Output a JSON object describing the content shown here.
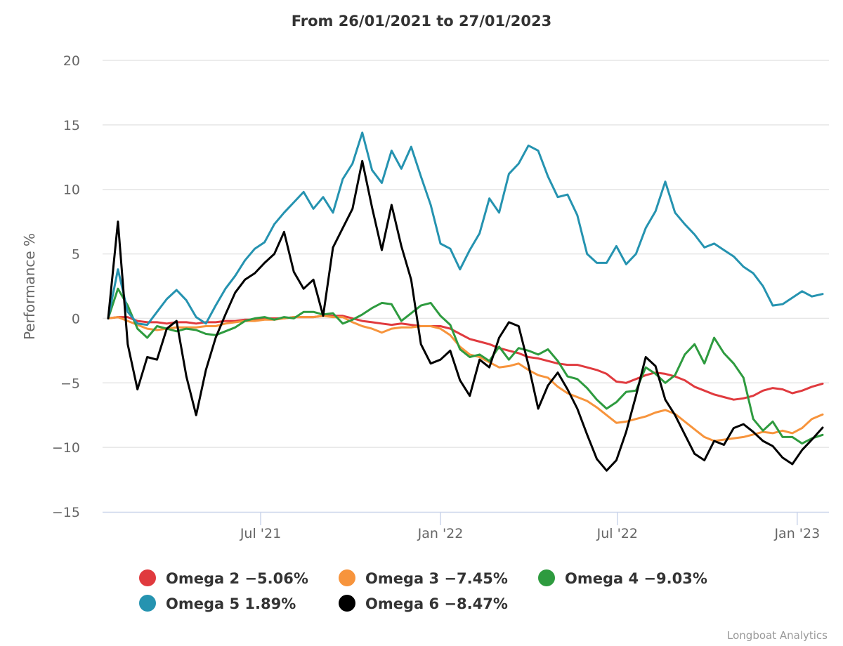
{
  "chart_data": {
    "type": "line",
    "title": "From 26/01/2021 to 27/01/2023",
    "xlabel": "",
    "ylabel": "Performance %",
    "ylim": [
      -15,
      20
    ],
    "yticks": [
      "20",
      "15",
      "10",
      "5",
      "0",
      "−5",
      "−10",
      "−15"
    ],
    "ytick_values": [
      20,
      15,
      10,
      5,
      0,
      -5,
      -10,
      -15
    ],
    "xrange": [
      "2021-01-26",
      "2023-01-27"
    ],
    "xticks": [
      {
        "label": "Jul '21",
        "date": "2021-07-01"
      },
      {
        "label": "Jan '22",
        "date": "2022-01-01"
      },
      {
        "label": "Jul '22",
        "date": "2022-07-01"
      },
      {
        "label": "Jan '23",
        "date": "2023-01-01"
      }
    ],
    "grid": true,
    "legend_position": "bottom",
    "credit": "Longboat Analytics",
    "x": [
      "2021-01-26",
      "2021-02-05",
      "2021-02-15",
      "2021-02-25",
      "2021-03-07",
      "2021-03-17",
      "2021-03-27",
      "2021-04-06",
      "2021-04-16",
      "2021-04-26",
      "2021-05-06",
      "2021-05-16",
      "2021-05-26",
      "2021-06-05",
      "2021-06-15",
      "2021-06-25",
      "2021-07-05",
      "2021-07-15",
      "2021-07-25",
      "2021-08-04",
      "2021-08-14",
      "2021-08-24",
      "2021-09-03",
      "2021-09-13",
      "2021-09-23",
      "2021-10-03",
      "2021-10-13",
      "2021-10-23",
      "2021-11-02",
      "2021-11-12",
      "2021-11-22",
      "2021-12-02",
      "2021-12-12",
      "2021-12-22",
      "2022-01-01",
      "2022-01-11",
      "2022-01-21",
      "2022-01-31",
      "2022-02-10",
      "2022-02-20",
      "2022-03-02",
      "2022-03-12",
      "2022-03-22",
      "2022-04-01",
      "2022-04-11",
      "2022-04-21",
      "2022-05-01",
      "2022-05-11",
      "2022-05-21",
      "2022-05-31",
      "2022-06-10",
      "2022-06-20",
      "2022-06-30",
      "2022-07-10",
      "2022-07-20",
      "2022-07-30",
      "2022-08-09",
      "2022-08-19",
      "2022-08-29",
      "2022-09-08",
      "2022-09-18",
      "2022-09-28",
      "2022-10-08",
      "2022-10-18",
      "2022-10-28",
      "2022-11-07",
      "2022-11-17",
      "2022-11-27",
      "2022-12-07",
      "2022-12-17",
      "2022-12-27",
      "2023-01-06",
      "2023-01-16",
      "2023-01-27"
    ],
    "series": [
      {
        "name": "Omega 2",
        "legend_label": "Omega 2 −5.06%",
        "color": "#e03a3e",
        "values": [
          0,
          0.1,
          0.1,
          -0.2,
          -0.3,
          -0.3,
          -0.4,
          -0.3,
          -0.3,
          -0.4,
          -0.3,
          -0.3,
          -0.2,
          -0.2,
          -0.1,
          -0.1,
          0,
          0,
          0,
          0.1,
          0.1,
          0.1,
          0.2,
          0.2,
          0.2,
          0,
          -0.2,
          -0.3,
          -0.4,
          -0.5,
          -0.4,
          -0.5,
          -0.6,
          -0.6,
          -0.6,
          -0.8,
          -1.2,
          -1.6,
          -1.8,
          -2,
          -2.3,
          -2.5,
          -2.7,
          -3,
          -3.1,
          -3.3,
          -3.5,
          -3.6,
          -3.6,
          -3.8,
          -4,
          -4.3,
          -4.9,
          -5,
          -4.7,
          -4.4,
          -4.2,
          -4.3,
          -4.5,
          -4.8,
          -5.3,
          -5.6,
          -5.9,
          -6.1,
          -6.3,
          -6.2,
          -6.0,
          -5.6,
          -5.4,
          -5.5,
          -5.8,
          -5.6,
          -5.3,
          -5.06
        ]
      },
      {
        "name": "Omega 3",
        "legend_label": "Omega 3 −7.45%",
        "color": "#f7943c",
        "values": [
          0,
          0.1,
          -0.2,
          -0.5,
          -0.8,
          -0.9,
          -0.8,
          -0.7,
          -0.7,
          -0.7,
          -0.6,
          -0.6,
          -0.4,
          -0.3,
          -0.2,
          -0.2,
          -0.1,
          -0.1,
          0,
          0.1,
          0.1,
          0.1,
          0.2,
          0.1,
          0.1,
          -0.3,
          -0.6,
          -0.8,
          -1.1,
          -0.8,
          -0.7,
          -0.7,
          -0.6,
          -0.6,
          -0.8,
          -1.3,
          -2.2,
          -2.8,
          -3.0,
          -3.4,
          -3.8,
          -3.7,
          -3.5,
          -4,
          -4.4,
          -4.6,
          -5.3,
          -5.8,
          -6.1,
          -6.4,
          -6.9,
          -7.5,
          -8.1,
          -8.0,
          -7.8,
          -7.6,
          -7.3,
          -7.1,
          -7.4,
          -8.0,
          -8.6,
          -9.2,
          -9.5,
          -9.4,
          -9.3,
          -9.2,
          -9.0,
          -8.8,
          -8.9,
          -8.7,
          -8.9,
          -8.5,
          -7.8,
          -7.45
        ]
      },
      {
        "name": "Omega 4",
        "legend_label": "Omega 4 −9.03%",
        "color": "#2e9b3f",
        "values": [
          0,
          2.3,
          1.0,
          -0.8,
          -1.5,
          -0.6,
          -0.8,
          -1.0,
          -0.8,
          -0.9,
          -1.2,
          -1.3,
          -1.0,
          -0.7,
          -0.2,
          0,
          0.1,
          -0.1,
          0.1,
          0,
          0.5,
          0.5,
          0.3,
          0.4,
          -0.4,
          -0.1,
          0.3,
          0.8,
          1.2,
          1.1,
          -0.2,
          0.4,
          1.0,
          1.2,
          0.2,
          -0.5,
          -2.4,
          -3.0,
          -2.8,
          -3.3,
          -2.2,
          -3.2,
          -2.3,
          -2.5,
          -2.8,
          -2.4,
          -3.3,
          -4.5,
          -4.7,
          -5.4,
          -6.3,
          -7.0,
          -6.5,
          -5.7,
          -5.6,
          -3.8,
          -4.3,
          -5.0,
          -4.4,
          -2.8,
          -2.0,
          -3.5,
          -1.5,
          -2.7,
          -3.5,
          -4.6,
          -7.8,
          -8.7,
          -8.0,
          -9.2,
          -9.2,
          -9.7,
          -9.3,
          -9.03
        ]
      },
      {
        "name": "Omega 5",
        "legend_label": "Omega 5 1.89%",
        "color": "#2593b0",
        "values": [
          0,
          3.8,
          0.5,
          -0.4,
          -0.5,
          0.5,
          1.5,
          2.2,
          1.4,
          0.1,
          -0.4,
          1.0,
          2.3,
          3.3,
          4.5,
          5.4,
          5.9,
          7.3,
          8.2,
          9.0,
          9.8,
          8.5,
          9.4,
          8.2,
          10.8,
          12.0,
          14.4,
          11.5,
          10.5,
          13.0,
          11.6,
          13.3,
          11.0,
          8.8,
          5.8,
          5.4,
          3.8,
          5.3,
          6.6,
          9.3,
          8.2,
          11.2,
          12.0,
          13.4,
          13.0,
          11.0,
          9.4,
          9.6,
          8.0,
          5.0,
          4.3,
          4.3,
          5.6,
          4.2,
          5.0,
          7.0,
          8.3,
          10.6,
          8.2,
          7.3,
          6.5,
          5.5,
          5.8,
          5.3,
          4.8,
          4.0,
          3.5,
          2.5,
          1.0,
          1.1,
          1.6,
          2.1,
          1.7,
          1.89
        ]
      },
      {
        "name": "Omega 6",
        "legend_label": "Omega 6 −8.47%",
        "color": "#000000",
        "values": [
          0,
          7.5,
          -2.0,
          -5.5,
          -3.0,
          -3.2,
          -0.8,
          -0.2,
          -4.5,
          -7.5,
          -4.0,
          -1.5,
          0.3,
          2.0,
          3.0,
          3.5,
          4.3,
          5.0,
          6.7,
          3.6,
          2.3,
          3.0,
          0.2,
          5.5,
          7.0,
          8.5,
          12.2,
          8.6,
          5.3,
          8.8,
          5.6,
          3.0,
          -2.0,
          -3.5,
          -3.2,
          -2.5,
          -4.8,
          -6.0,
          -3.2,
          -3.8,
          -1.5,
          -0.3,
          -0.6,
          -3.6,
          -7.0,
          -5.2,
          -4.2,
          -5.5,
          -7.0,
          -9.0,
          -10.9,
          -11.8,
          -11.0,
          -8.8,
          -6.0,
          -3.0,
          -3.7,
          -6.3,
          -7.5,
          -9.0,
          -10.5,
          -11.0,
          -9.5,
          -9.8,
          -8.5,
          -8.2,
          -8.8,
          -9.5,
          -9.9,
          -10.8,
          -11.3,
          -10.2,
          -9.4,
          -8.47
        ]
      }
    ]
  }
}
